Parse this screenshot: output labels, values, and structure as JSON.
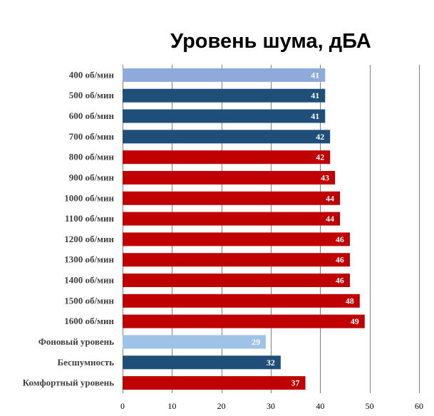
{
  "chart_data": {
    "type": "bar",
    "orientation": "horizontal",
    "title": "Уровень шума, дБА",
    "categories": [
      "400 об/мин",
      "500 об/мин",
      "600 об/мин",
      "700 об/мин",
      "800 об/мин",
      "900 об/мин",
      "1000 об/мин",
      "1100 об/мин",
      "1200 об/мин",
      "1300 об/мин",
      "1400 об/мин",
      "1500 об/мин",
      "1600 об/мин",
      "Фоновый уровень",
      "Бесшумность",
      "Комфортный уровень"
    ],
    "values": [
      41,
      41,
      41,
      42,
      42,
      43,
      44,
      44,
      46,
      46,
      46,
      48,
      49,
      29,
      32,
      37
    ],
    "bar_colors": [
      "#8eaadb",
      "#1f4e79",
      "#1f4e79",
      "#1f4e79",
      "#c00000",
      "#c00000",
      "#c00000",
      "#c00000",
      "#c00000",
      "#c00000",
      "#c00000",
      "#c00000",
      "#c00000",
      "#9dc3e6",
      "#1f4e79",
      "#c00000"
    ],
    "xlim": [
      0,
      60
    ],
    "xticks": [
      0,
      10,
      20,
      30,
      40,
      50,
      60
    ],
    "grid": true,
    "data_labels": true,
    "legend": false
  }
}
